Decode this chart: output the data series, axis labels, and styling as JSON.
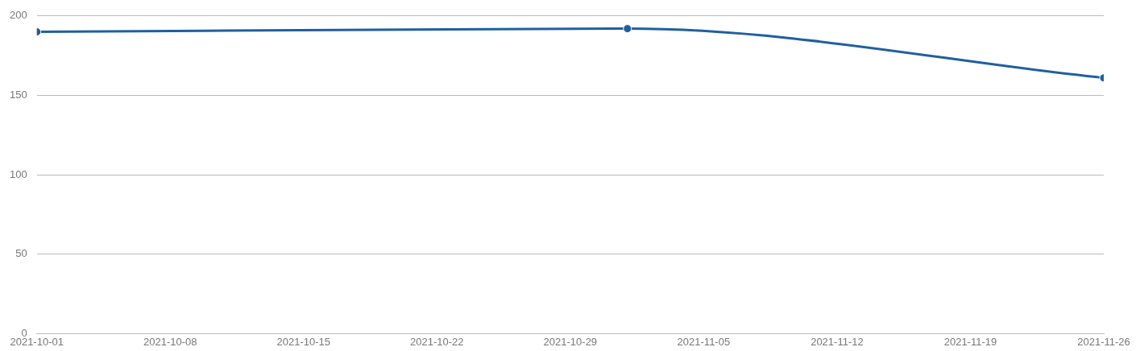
{
  "chart_data": {
    "type": "line",
    "x": [
      "2021-10-01",
      "2021-11-01",
      "2021-11-26"
    ],
    "series": [
      {
        "color": "#1f5fa0",
        "values": [
          190,
          192,
          161
        ]
      }
    ],
    "xlim": [
      "2021-10-01",
      "2021-11-26"
    ],
    "xticks": [
      "2021-10-01",
      "2021-10-08",
      "2021-10-15",
      "2021-10-22",
      "2021-10-29",
      "2021-11-05",
      "2021-11-12",
      "2021-11-19",
      "2021-11-26"
    ],
    "ylim": [
      0,
      200
    ],
    "yticks": [
      0,
      50,
      100,
      150,
      200
    ],
    "grid": "y",
    "legend": false,
    "marker": "circle",
    "line_style": "solid"
  }
}
